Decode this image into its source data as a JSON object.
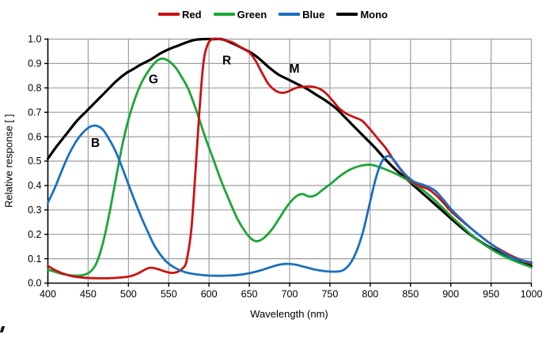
{
  "figure": {
    "background": "#ffffff"
  },
  "colors": {
    "grid": "#9d9d9d",
    "axis": "#000000",
    "text": "#000000"
  },
  "chart_data": {
    "type": "line",
    "title": "",
    "xlabel": "Wavelength (nm)",
    "ylabel": "Relative response [ ]",
    "xlim": [
      400,
      1000
    ],
    "ylim": [
      0.0,
      1.0
    ],
    "xtick_step": 50,
    "ytick_step": 0.1,
    "grid": true,
    "legend_position": "top",
    "annotations": [
      {
        "text": "B",
        "x": 459,
        "y": 0.575
      },
      {
        "text": "G",
        "x": 531,
        "y": 0.835
      },
      {
        "text": "R",
        "x": 622,
        "y": 0.912
      },
      {
        "text": "M",
        "x": 706,
        "y": 0.878
      }
    ],
    "series": [
      {
        "name": "Mono",
        "color": "#000000",
        "width": 3.2,
        "points": [
          [
            400,
            0.51
          ],
          [
            412,
            0.565
          ],
          [
            424,
            0.615
          ],
          [
            436,
            0.665
          ],
          [
            448,
            0.705
          ],
          [
            460,
            0.745
          ],
          [
            472,
            0.785
          ],
          [
            484,
            0.825
          ],
          [
            496,
            0.858
          ],
          [
            505,
            0.875
          ],
          [
            515,
            0.895
          ],
          [
            527,
            0.915
          ],
          [
            539,
            0.94
          ],
          [
            551,
            0.96
          ],
          [
            563,
            0.975
          ],
          [
            575,
            0.99
          ],
          [
            585,
            0.998
          ],
          [
            595,
            1.0
          ],
          [
            605,
            1.0
          ],
          [
            615,
            1.0
          ],
          [
            624,
            0.99
          ],
          [
            634,
            0.975
          ],
          [
            644,
            0.958
          ],
          [
            654,
            0.94
          ],
          [
            664,
            0.915
          ],
          [
            674,
            0.885
          ],
          [
            686,
            0.855
          ],
          [
            698,
            0.835
          ],
          [
            710,
            0.815
          ],
          [
            722,
            0.795
          ],
          [
            734,
            0.77
          ],
          [
            746,
            0.745
          ],
          [
            758,
            0.715
          ],
          [
            770,
            0.675
          ],
          [
            782,
            0.635
          ],
          [
            794,
            0.595
          ],
          [
            806,
            0.555
          ],
          [
            818,
            0.51
          ],
          [
            830,
            0.47
          ],
          [
            842,
            0.435
          ],
          [
            854,
            0.4
          ],
          [
            866,
            0.365
          ],
          [
            878,
            0.33
          ],
          [
            890,
            0.295
          ],
          [
            902,
            0.26
          ],
          [
            916,
            0.22
          ],
          [
            930,
            0.185
          ],
          [
            944,
            0.155
          ],
          [
            958,
            0.13
          ],
          [
            972,
            0.105
          ],
          [
            986,
            0.085
          ],
          [
            1000,
            0.07
          ]
        ]
      },
      {
        "name": "Green",
        "color": "#1aa637",
        "width": 2.8,
        "points": [
          [
            400,
            0.055
          ],
          [
            410,
            0.045
          ],
          [
            420,
            0.036
          ],
          [
            432,
            0.031
          ],
          [
            442,
            0.032
          ],
          [
            452,
            0.045
          ],
          [
            460,
            0.08
          ],
          [
            468,
            0.16
          ],
          [
            476,
            0.28
          ],
          [
            484,
            0.42
          ],
          [
            492,
            0.56
          ],
          [
            500,
            0.67
          ],
          [
            508,
            0.755
          ],
          [
            516,
            0.82
          ],
          [
            526,
            0.875
          ],
          [
            535,
            0.91
          ],
          [
            542,
            0.92
          ],
          [
            550,
            0.91
          ],
          [
            558,
            0.885
          ],
          [
            566,
            0.845
          ],
          [
            575,
            0.79
          ],
          [
            585,
            0.7
          ],
          [
            595,
            0.6
          ],
          [
            605,
            0.51
          ],
          [
            615,
            0.42
          ],
          [
            625,
            0.34
          ],
          [
            635,
            0.265
          ],
          [
            645,
            0.21
          ],
          [
            653,
            0.18
          ],
          [
            660,
            0.172
          ],
          [
            668,
            0.185
          ],
          [
            678,
            0.22
          ],
          [
            688,
            0.27
          ],
          [
            698,
            0.32
          ],
          [
            708,
            0.355
          ],
          [
            716,
            0.365
          ],
          [
            724,
            0.355
          ],
          [
            732,
            0.36
          ],
          [
            742,
            0.385
          ],
          [
            752,
            0.41
          ],
          [
            763,
            0.44
          ],
          [
            775,
            0.465
          ],
          [
            787,
            0.48
          ],
          [
            800,
            0.485
          ],
          [
            812,
            0.475
          ],
          [
            825,
            0.458
          ],
          [
            838,
            0.438
          ],
          [
            850,
            0.415
          ],
          [
            862,
            0.39
          ],
          [
            875,
            0.355
          ],
          [
            888,
            0.315
          ],
          [
            900,
            0.275
          ],
          [
            915,
            0.23
          ],
          [
            930,
            0.185
          ],
          [
            945,
            0.15
          ],
          [
            960,
            0.12
          ],
          [
            980,
            0.09
          ],
          [
            1000,
            0.065
          ]
        ]
      },
      {
        "name": "Red",
        "color": "#cc1111",
        "width": 2.8,
        "points": [
          [
            400,
            0.07
          ],
          [
            408,
            0.055
          ],
          [
            418,
            0.04
          ],
          [
            430,
            0.028
          ],
          [
            445,
            0.022
          ],
          [
            460,
            0.02
          ],
          [
            475,
            0.02
          ],
          [
            490,
            0.023
          ],
          [
            502,
            0.028
          ],
          [
            512,
            0.04
          ],
          [
            522,
            0.058
          ],
          [
            528,
            0.063
          ],
          [
            536,
            0.058
          ],
          [
            545,
            0.048
          ],
          [
            553,
            0.042
          ],
          [
            560,
            0.045
          ],
          [
            567,
            0.06
          ],
          [
            572,
            0.09
          ],
          [
            578,
            0.22
          ],
          [
            583,
            0.45
          ],
          [
            588,
            0.7
          ],
          [
            593,
            0.9
          ],
          [
            598,
            0.975
          ],
          [
            604,
            1.0
          ],
          [
            612,
            1.0
          ],
          [
            620,
            0.995
          ],
          [
            630,
            0.985
          ],
          [
            640,
            0.965
          ],
          [
            650,
            0.945
          ],
          [
            658,
            0.91
          ],
          [
            666,
            0.86
          ],
          [
            674,
            0.815
          ],
          [
            682,
            0.79
          ],
          [
            690,
            0.78
          ],
          [
            698,
            0.785
          ],
          [
            708,
            0.8
          ],
          [
            718,
            0.805
          ],
          [
            728,
            0.805
          ],
          [
            738,
            0.795
          ],
          [
            746,
            0.775
          ],
          [
            754,
            0.745
          ],
          [
            762,
            0.715
          ],
          [
            770,
            0.695
          ],
          [
            780,
            0.68
          ],
          [
            790,
            0.665
          ],
          [
            800,
            0.63
          ],
          [
            810,
            0.59
          ],
          [
            820,
            0.55
          ],
          [
            830,
            0.5
          ],
          [
            840,
            0.455
          ],
          [
            850,
            0.42
          ],
          [
            860,
            0.4
          ],
          [
            872,
            0.385
          ],
          [
            882,
            0.36
          ],
          [
            892,
            0.325
          ],
          [
            900,
            0.295
          ],
          [
            912,
            0.26
          ],
          [
            925,
            0.225
          ],
          [
            938,
            0.19
          ],
          [
            950,
            0.16
          ],
          [
            965,
            0.13
          ],
          [
            980,
            0.105
          ],
          [
            1000,
            0.08
          ]
        ]
      },
      {
        "name": "Blue",
        "color": "#1a6fc0",
        "width": 2.8,
        "points": [
          [
            400,
            0.33
          ],
          [
            408,
            0.385
          ],
          [
            416,
            0.45
          ],
          [
            425,
            0.52
          ],
          [
            434,
            0.575
          ],
          [
            443,
            0.615
          ],
          [
            452,
            0.64
          ],
          [
            460,
            0.645
          ],
          [
            468,
            0.63
          ],
          [
            476,
            0.59
          ],
          [
            484,
            0.54
          ],
          [
            492,
            0.475
          ],
          [
            500,
            0.405
          ],
          [
            508,
            0.335
          ],
          [
            516,
            0.27
          ],
          [
            524,
            0.21
          ],
          [
            532,
            0.155
          ],
          [
            540,
            0.115
          ],
          [
            548,
            0.085
          ],
          [
            558,
            0.062
          ],
          [
            570,
            0.045
          ],
          [
            582,
            0.037
          ],
          [
            595,
            0.032
          ],
          [
            610,
            0.03
          ],
          [
            625,
            0.031
          ],
          [
            640,
            0.035
          ],
          [
            652,
            0.042
          ],
          [
            664,
            0.052
          ],
          [
            676,
            0.065
          ],
          [
            688,
            0.076
          ],
          [
            698,
            0.079
          ],
          [
            708,
            0.075
          ],
          [
            720,
            0.065
          ],
          [
            732,
            0.055
          ],
          [
            744,
            0.049
          ],
          [
            756,
            0.047
          ],
          [
            766,
            0.052
          ],
          [
            775,
            0.08
          ],
          [
            783,
            0.13
          ],
          [
            791,
            0.21
          ],
          [
            799,
            0.32
          ],
          [
            807,
            0.43
          ],
          [
            814,
            0.495
          ],
          [
            821,
            0.52
          ],
          [
            828,
            0.51
          ],
          [
            836,
            0.475
          ],
          [
            845,
            0.44
          ],
          [
            855,
            0.415
          ],
          [
            868,
            0.4
          ],
          [
            880,
            0.38
          ],
          [
            890,
            0.345
          ],
          [
            900,
            0.305
          ],
          [
            912,
            0.265
          ],
          [
            925,
            0.225
          ],
          [
            938,
            0.19
          ],
          [
            950,
            0.16
          ],
          [
            965,
            0.125
          ],
          [
            980,
            0.1
          ],
          [
            1000,
            0.085
          ]
        ]
      }
    ],
    "legend_order": [
      "Red",
      "Green",
      "Blue",
      "Mono"
    ]
  }
}
